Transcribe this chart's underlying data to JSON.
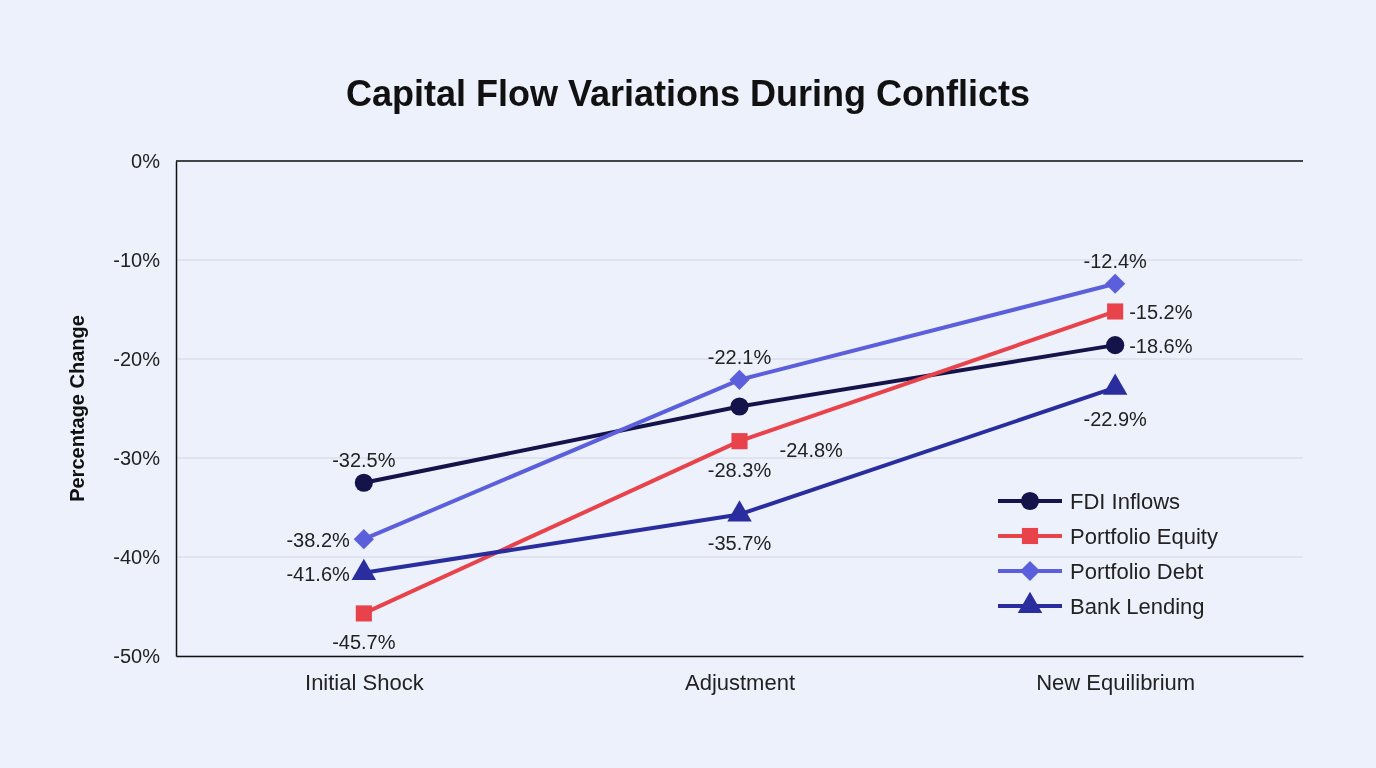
{
  "chart_data": {
    "type": "line",
    "title": "Capital Flow Variations During Conflicts",
    "ylabel": "Percentage Change",
    "categories": [
      "Initial Shock",
      "Adjustment",
      "New Equilibrium"
    ],
    "ylim": [
      -50,
      0
    ],
    "yticks": [
      {
        "value": -50,
        "label": "-50%"
      },
      {
        "value": -40,
        "label": "-40%"
      },
      {
        "value": -30,
        "label": "-30%"
      },
      {
        "value": -20,
        "label": "-20%"
      },
      {
        "value": -10,
        "label": "-10%"
      },
      {
        "value": 0,
        "label": "0%"
      }
    ],
    "grid": "y",
    "legend": "bottom right",
    "line_style": "solid",
    "series": [
      {
        "name": "FDI Inflows",
        "color": "#15144a",
        "marker": "circle",
        "values": [
          -32.5,
          -24.8,
          -18.6
        ],
        "value_labels": [
          "-32.5%",
          "-24.8%",
          "-18.6%"
        ]
      },
      {
        "name": "Portfolio Equity",
        "color": "#e8434a",
        "marker": "square",
        "values": [
          -45.7,
          -28.3,
          -15.2
        ],
        "value_labels": [
          "-45.7%",
          "-28.3%",
          "-15.2%"
        ]
      },
      {
        "name": "Portfolio Debt",
        "color": "#5b5fdc",
        "marker": "diamond",
        "values": [
          -38.2,
          -22.1,
          -12.4
        ],
        "value_labels": [
          "-38.2%",
          "-22.1%",
          "-12.4%"
        ]
      },
      {
        "name": "Bank Lending",
        "color": "#2a2d9e",
        "marker": "triangle",
        "values": [
          -41.6,
          -35.7,
          -22.9
        ],
        "value_labels": [
          "-41.6%",
          "-35.7%",
          "-22.9%"
        ]
      }
    ]
  }
}
